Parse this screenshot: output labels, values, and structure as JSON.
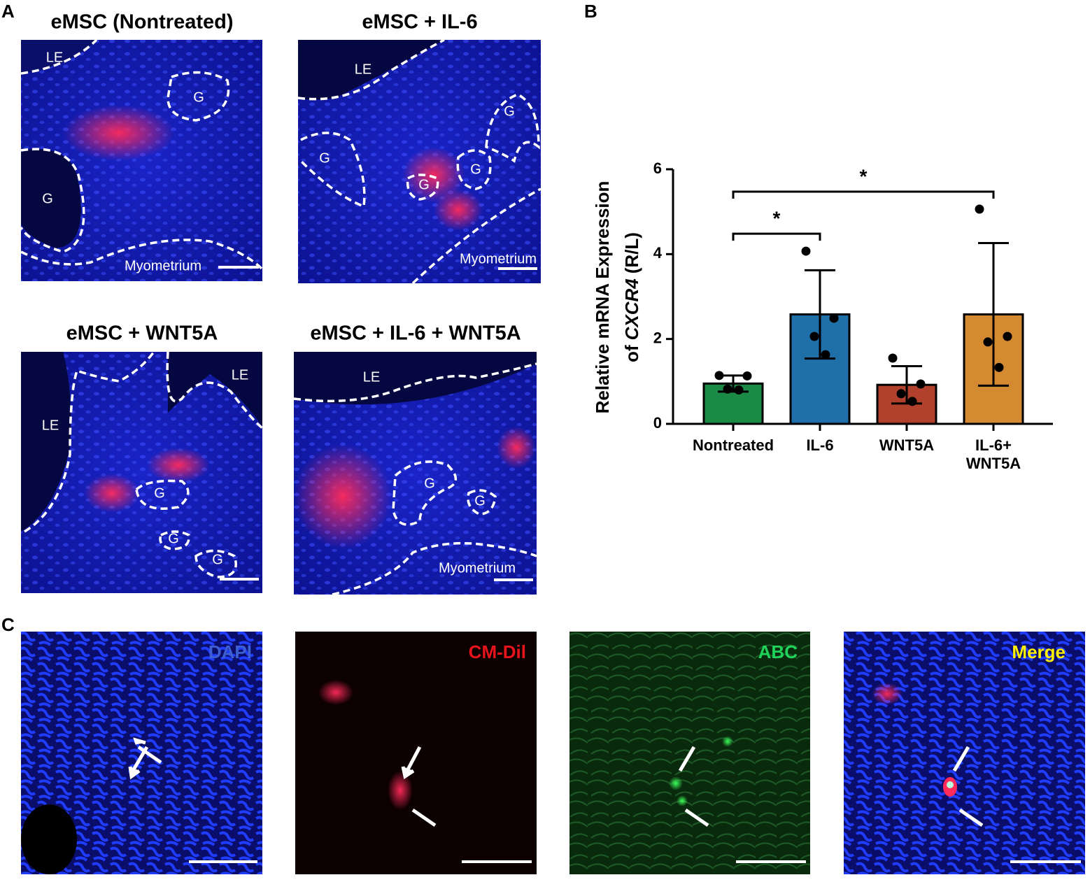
{
  "panel_labels": [
    "A",
    "B",
    "C"
  ],
  "panel_a": {
    "images": [
      {
        "title": "eMSC (Nontreated)",
        "labels": [
          "LE",
          "G",
          "G",
          "Myometrium"
        ]
      },
      {
        "title": "eMSC + IL-6",
        "labels": [
          "LE",
          "G",
          "G",
          "G",
          "G",
          "Myometrium"
        ]
      },
      {
        "title": "eMSC + WNT5A",
        "labels": [
          "LE",
          "LE",
          "G",
          "G",
          "G"
        ]
      },
      {
        "title": "eMSC + IL-6 + WNT5A",
        "labels": [
          "LE",
          "G",
          "G",
          "Myometrium"
        ]
      }
    ]
  },
  "chart_data": {
    "type": "bar",
    "ylabel": {
      "line1": "Relative mRNA Expression",
      "line2": [
        "of",
        "CXCR4",
        "(R/L)"
      ]
    },
    "categories": [
      [
        "Nontreated"
      ],
      [
        "IL-6"
      ],
      [
        "WNT5A"
      ],
      [
        "IL-6+",
        "WNT5A"
      ]
    ],
    "values": [
      0.95,
      2.58,
      0.92,
      2.58
    ],
    "errors": [
      0.19,
      1.04,
      0.44,
      1.68
    ],
    "points": [
      [
        1.14,
        1.13,
        0.82,
        0.8
      ],
      [
        4.07,
        2.49,
        2.06,
        1.63
      ],
      [
        1.55,
        0.94,
        0.71,
        0.53
      ],
      [
        5.06,
        2.06,
        1.93,
        1.33
      ]
    ],
    "colors": [
      "#1b8a47",
      "#1f6fa8",
      "#b1402c",
      "#d48a30"
    ],
    "ylim": [
      0,
      6
    ],
    "yticks": [
      0,
      2,
      4,
      6
    ],
    "significance": [
      {
        "groups": [
          0,
          1
        ],
        "label": "*"
      },
      {
        "groups": [
          0,
          3
        ],
        "label": "*"
      }
    ]
  },
  "panel_c": {
    "images": [
      {
        "title": "DAPI"
      },
      {
        "title": "CM-Dil"
      },
      {
        "title": "ABC"
      },
      {
        "title": "Merge"
      }
    ]
  }
}
